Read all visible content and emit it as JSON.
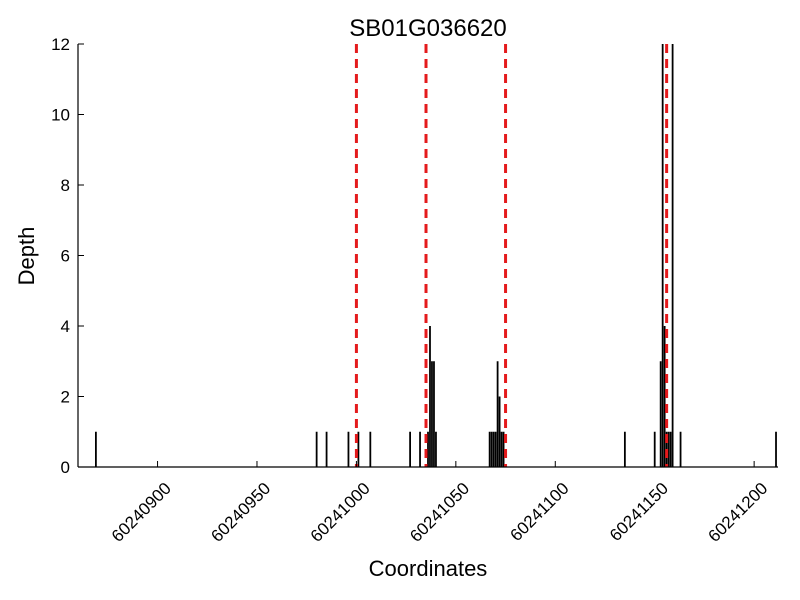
{
  "chart_data": {
    "type": "bar",
    "title": "SB01G036620",
    "xlabel": "Coordinates",
    "ylabel": "Depth",
    "xlim": [
      60240860,
      60241212
    ],
    "ylim": [
      0,
      12
    ],
    "grid": false,
    "xticks": [
      60240900,
      60240950,
      60241000,
      60241050,
      60241100,
      60241150,
      60241200
    ],
    "xtick_labels": [
      "60240900",
      "60240950",
      "60241000",
      "60241050",
      "60241100",
      "60241150",
      "60241200"
    ],
    "yticks": [
      0,
      2,
      4,
      6,
      8,
      10,
      12
    ],
    "ytick_labels": [
      "0",
      "2",
      "4",
      "6",
      "8",
      "10",
      "12"
    ],
    "bar_color": "#000000",
    "x": [
      60240869,
      60240980,
      60240985,
      60240996,
      60241001,
      60241007,
      60241027,
      60241032,
      60241036,
      60241037,
      60241038,
      60241039,
      60241040,
      60241067,
      60241068,
      60241069,
      60241070,
      60241071,
      60241072,
      60241073,
      60241074,
      60241135,
      60241150,
      60241153,
      60241154,
      60241155,
      60241156,
      60241157,
      60241158,
      60241159,
      60241163,
      60241211
    ],
    "values": [
      1,
      1,
      1,
      1,
      1,
      1,
      1,
      1,
      1,
      4,
      3,
      3,
      1,
      1,
      1,
      1,
      1,
      3,
      2,
      1,
      1,
      1,
      1,
      3,
      12,
      4,
      1,
      1,
      1,
      12,
      1,
      1
    ],
    "reference_lines": {
      "x": [
        60241000,
        60241035,
        60241075,
        60241156
      ],
      "color": "#e41a1c",
      "style": "dashed"
    }
  }
}
